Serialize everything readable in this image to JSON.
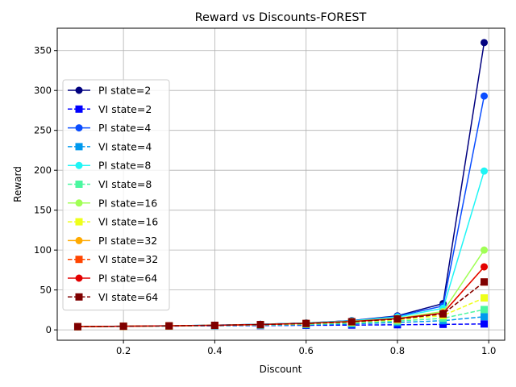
{
  "chart_data": {
    "type": "line",
    "title": "Reward vs Discounts-FOREST",
    "xlabel": "Discount",
    "ylabel": "Reward",
    "xlim": [
      0.055,
      1.035
    ],
    "ylim": [
      -13,
      378
    ],
    "xticks": [
      0.2,
      0.4,
      0.6,
      0.8,
      1.0
    ],
    "xtick_labels": [
      "0.2",
      "0.4",
      "0.6",
      "0.8",
      "1.0"
    ],
    "yticks": [
      0,
      50,
      100,
      150,
      200,
      250,
      300,
      350
    ],
    "ytick_labels": [
      "0",
      "50",
      "100",
      "150",
      "200",
      "250",
      "300",
      "350"
    ],
    "grid": true,
    "legend_position": "center-left",
    "x": [
      0.1,
      0.2,
      0.3,
      0.4,
      0.5,
      0.6,
      0.7,
      0.8,
      0.9,
      0.99
    ],
    "series": [
      {
        "name": "PI state=2",
        "color": "#00007f",
        "dash": "solid",
        "marker": "circle",
        "values": [
          4,
          4.5,
          5,
          5.8,
          6.9,
          8.6,
          11.6,
          17.6,
          33,
          360
        ]
      },
      {
        "name": "VI state=2",
        "color": "#0000ff",
        "dash": "dashed",
        "marker": "square",
        "values": [
          4,
          4.4,
          4.8,
          5.1,
          5.4,
          5.7,
          6,
          6.4,
          6.9,
          7.4
        ]
      },
      {
        "name": "PI state=4",
        "color": "#0a4dff",
        "dash": "solid",
        "marker": "circle",
        "values": [
          4,
          4.5,
          5,
          5.8,
          6.9,
          8.6,
          11.5,
          17,
          30,
          293
        ]
      },
      {
        "name": "VI state=4",
        "color": "#0099ee",
        "dash": "dashed",
        "marker": "square",
        "values": [
          4,
          4.4,
          4.9,
          5.3,
          5.8,
          6.4,
          7.5,
          9.2,
          11.5,
          16.5
        ]
      },
      {
        "name": "PI state=8",
        "color": "#1ff5f5",
        "dash": "solid",
        "marker": "circle",
        "values": [
          4,
          4.5,
          5,
          5.8,
          6.9,
          8.6,
          11.3,
          16,
          27,
          199
        ]
      },
      {
        "name": "VI state=8",
        "color": "#4bf7a0",
        "dash": "dashed",
        "marker": "square",
        "values": [
          4,
          4.4,
          4.9,
          5.5,
          6.2,
          7,
          8.6,
          11,
          14.5,
          25.5
        ]
      },
      {
        "name": "PI state=16",
        "color": "#a0ff55",
        "dash": "solid",
        "marker": "circle",
        "values": [
          4,
          4.5,
          5,
          5.7,
          6.7,
          8.3,
          10.8,
          14.5,
          23,
          100
        ]
      },
      {
        "name": "VI state=16",
        "color": "#eeff1a",
        "dash": "dashed",
        "marker": "square",
        "values": [
          4,
          4.4,
          4.9,
          5.6,
          6.4,
          7.6,
          9.6,
          12.5,
          18,
          40
        ]
      },
      {
        "name": "PI state=32",
        "color": "#ffaa00",
        "dash": "solid",
        "marker": "circle",
        "values": [
          4,
          4.5,
          5,
          5.7,
          6.7,
          8.2,
          10.5,
          14,
          21,
          79
        ]
      },
      {
        "name": "VI state=32",
        "color": "#ff4500",
        "dash": "dashed",
        "marker": "square",
        "values": [
          4,
          4.5,
          5,
          5.7,
          6.6,
          8,
          10.2,
          13.6,
          20,
          60
        ]
      },
      {
        "name": "PI state=64",
        "color": "#e30000",
        "dash": "solid",
        "marker": "circle",
        "values": [
          4,
          4.5,
          5,
          5.7,
          6.7,
          8.2,
          10.5,
          14,
          21,
          79
        ]
      },
      {
        "name": "VI state=64",
        "color": "#7f0000",
        "dash": "dashed",
        "marker": "square",
        "values": [
          4,
          4.5,
          5,
          5.7,
          6.6,
          8,
          10.2,
          13.6,
          20,
          60
        ]
      }
    ]
  }
}
